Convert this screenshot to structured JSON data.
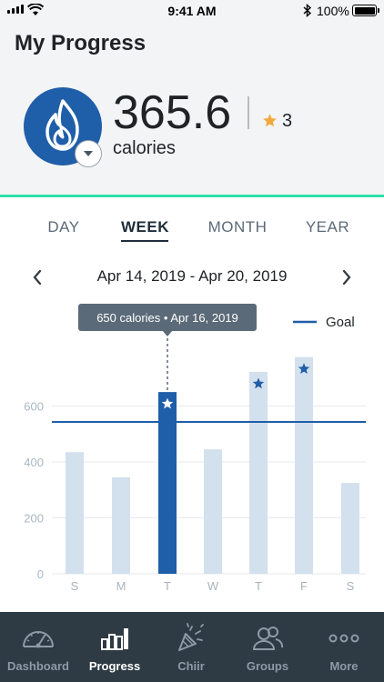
{
  "status_bar": {
    "time": "9:41 AM",
    "battery": "100%"
  },
  "header": {
    "title": "My Progress",
    "calories_value": "365.6",
    "calories_unit": "calories",
    "star_count": "3"
  },
  "range_tabs": [
    "DAY",
    "WEEK",
    "MONTH",
    "YEAR"
  ],
  "active_range_tab": "WEEK",
  "date_range": "Apr 14, 2019 - Apr 20, 2019",
  "colors": {
    "brand_blue": "#1f5ea8",
    "bar_light": "#d3e0ee",
    "bar_selected": "#1f5ea8",
    "goal_line": "#1f5ea8",
    "accent_green": "#2ee0a8",
    "star_gold": "#f2a93b",
    "tooltip_bg": "#5b6a78",
    "tabbar_bg": "#2e3a44"
  },
  "chart_data": {
    "type": "bar",
    "categories": [
      "S",
      "M",
      "T",
      "W",
      "T",
      "F",
      "S"
    ],
    "values": [
      435,
      345,
      650,
      445,
      722,
      775,
      325
    ],
    "goal": 543,
    "goal_label": "Goal",
    "stars": [
      false,
      false,
      true,
      false,
      true,
      true,
      false
    ],
    "selected_index": 2,
    "tooltip": "650 calories • Apr 16, 2019",
    "yticks": [
      0,
      200,
      400,
      600
    ],
    "ylim": [
      0,
      800
    ],
    "grid": true,
    "legend": "top-right"
  },
  "tab_bar": [
    {
      "label": "Dashboard",
      "icon": "speedometer-icon",
      "active": false
    },
    {
      "label": "Progress",
      "icon": "bar-chart-icon",
      "active": true
    },
    {
      "label": "Chiir",
      "icon": "party-popper-icon",
      "active": false
    },
    {
      "label": "Groups",
      "icon": "people-icon",
      "active": false
    },
    {
      "label": "More",
      "icon": "more-dots-icon",
      "active": false
    }
  ]
}
